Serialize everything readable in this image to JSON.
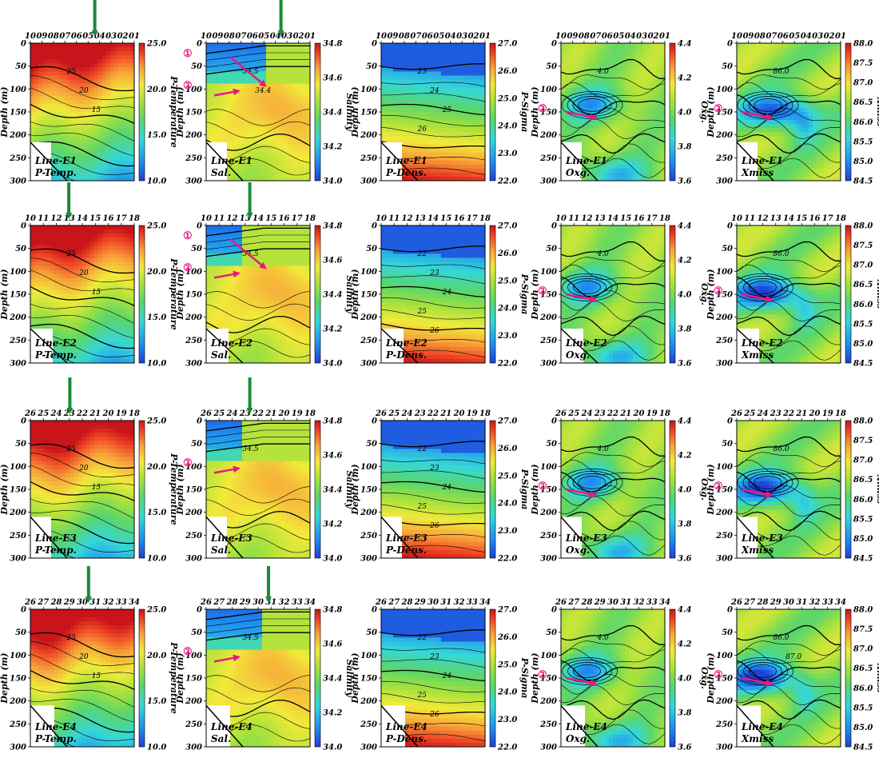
{
  "chart_data": {
    "type": "heatmap",
    "title": "",
    "yaxis": {
      "label": "Depth (m)",
      "ticks": [
        "0",
        "50",
        "100",
        "150",
        "200",
        "250",
        "300"
      ],
      "range": [
        0,
        300
      ]
    },
    "markers": {
      "circle1": "①",
      "circle2": "②"
    },
    "rows": [
      {
        "name": "E1",
        "stations": [
          "10",
          "09",
          "08",
          "07",
          "06",
          "05",
          "04",
          "03",
          "02",
          "01"
        ],
        "green_arrow_station": [
          0.62,
          0.72
        ],
        "panels": [
          {
            "variable": "temp",
            "line_label": "Line-E1",
            "var_label": "P-Temp.",
            "contour_labels": [
              "25",
              "20",
              "15"
            ]
          },
          {
            "variable": "sal",
            "line_label": "Line-E1",
            "var_label": "Sal.",
            "contour_labels": [
              "34.5",
              "34.4"
            ]
          },
          {
            "variable": "dens",
            "line_label": "Line-E1",
            "var_label": "P-Dens.",
            "contour_labels": [
              "23",
              "24",
              "25",
              "26"
            ]
          },
          {
            "variable": "oxg",
            "line_label": "Line-E1",
            "var_label": "Oxg.",
            "contour_labels": [
              "4.0"
            ]
          },
          {
            "variable": "xmiss",
            "line_label": "Line-E1",
            "var_label": "Xmiss",
            "contour_labels": [
              "86.0"
            ]
          }
        ]
      },
      {
        "name": "E2",
        "stations": [
          "10",
          "11",
          "12",
          "13",
          "14",
          "15",
          "16",
          "17",
          "18"
        ],
        "green_arrow_station": [
          0.37,
          0.42
        ],
        "panels": [
          {
            "variable": "temp",
            "line_label": "Line-E2",
            "var_label": "P-Temp.",
            "contour_labels": [
              "25",
              "20",
              "15"
            ]
          },
          {
            "variable": "sal",
            "line_label": "Line-E2",
            "var_label": "Sal.",
            "contour_labels": [
              "34.5"
            ]
          },
          {
            "variable": "dens",
            "line_label": "Line-E2",
            "var_label": "P-Dens.",
            "contour_labels": [
              "22",
              "23",
              "24",
              "25",
              "26"
            ]
          },
          {
            "variable": "oxg",
            "line_label": "Line-E2",
            "var_label": "Oxg.",
            "contour_labels": [
              "4.0"
            ]
          },
          {
            "variable": "xmiss",
            "line_label": "Line-E2",
            "var_label": "Xmiss",
            "contour_labels": [
              "86.0"
            ]
          }
        ]
      },
      {
        "name": "E3",
        "stations": [
          "26",
          "25",
          "24",
          "23",
          "22",
          "21",
          "20",
          "19",
          "18"
        ],
        "green_arrow_station": [
          0.38,
          0.42
        ],
        "panels": [
          {
            "variable": "temp",
            "line_label": "Line-E3",
            "var_label": "P-Temp.",
            "contour_labels": [
              "25",
              "20",
              "15"
            ]
          },
          {
            "variable": "sal",
            "line_label": "Line-E3",
            "var_label": "Sal.",
            "contour_labels": [
              "34.5"
            ]
          },
          {
            "variable": "dens",
            "line_label": "Line-E3",
            "var_label": "P-Dens.",
            "contour_labels": [
              "22",
              "23",
              "24",
              "25",
              "26"
            ]
          },
          {
            "variable": "oxg",
            "line_label": "Line-E3",
            "var_label": "Oxg.",
            "contour_labels": [
              "4.0"
            ]
          },
          {
            "variable": "xmiss",
            "line_label": "Line-E3",
            "var_label": "Xmiss",
            "contour_labels": [
              "86.0"
            ]
          }
        ]
      },
      {
        "name": "E4",
        "stations": [
          "26",
          "27",
          "28",
          "29",
          "30",
          "31",
          "32",
          "33",
          "34"
        ],
        "green_arrow_station": [
          0.56,
          0.6
        ],
        "panels": [
          {
            "variable": "temp",
            "line_label": "Line-E4",
            "var_label": "P-Temp.",
            "contour_labels": [
              "25",
              "20",
              "15"
            ]
          },
          {
            "variable": "sal",
            "line_label": "Line-E4",
            "var_label": "Sal.",
            "contour_labels": [
              "34.5"
            ]
          },
          {
            "variable": "dens",
            "line_label": "Line-E4",
            "var_label": "P-Dens.",
            "contour_labels": [
              "22",
              "23",
              "24",
              "25",
              "26"
            ]
          },
          {
            "variable": "oxg",
            "line_label": "Line-E4",
            "var_label": "Oxg.",
            "contour_labels": [
              "4.0"
            ]
          },
          {
            "variable": "xmiss",
            "line_label": "Line-E4",
            "var_label": "Xmiss",
            "contour_labels": [
              "86.0",
              "87.0"
            ]
          }
        ]
      }
    ],
    "colorbars": {
      "temp": {
        "label": "P-Temperature",
        "ticks": [
          "25.0",
          "20.0",
          "15.0",
          "10.0"
        ],
        "range": [
          10,
          25
        ]
      },
      "sal": {
        "label": "Salinity",
        "ticks": [
          "34.8",
          "34.6",
          "34.4",
          "34.2",
          "34.0"
        ],
        "range": [
          34.0,
          34.8
        ]
      },
      "dens": {
        "label": "P-Sigma",
        "ticks": [
          "27.0",
          "26.0",
          "25.0",
          "24.0",
          "23.0",
          "22.0"
        ],
        "range": [
          22,
          27
        ]
      },
      "oxg": {
        "label": "Oxg.",
        "ticks": [
          "4.4",
          "4.2",
          "4.0",
          "3.8",
          "3.6"
        ],
        "range": [
          3.5,
          4.5
        ]
      },
      "xmiss": {
        "label": "Xmiss",
        "ticks": [
          "88.0",
          "87.5",
          "87.0",
          "86.5",
          "86.0",
          "85.5",
          "85.0",
          "84.5"
        ],
        "range": [
          84.5,
          88
        ]
      }
    },
    "colors": {
      "arrow_green": "#1a8a3a",
      "arrow_magenta": "#e8197e"
    }
  }
}
